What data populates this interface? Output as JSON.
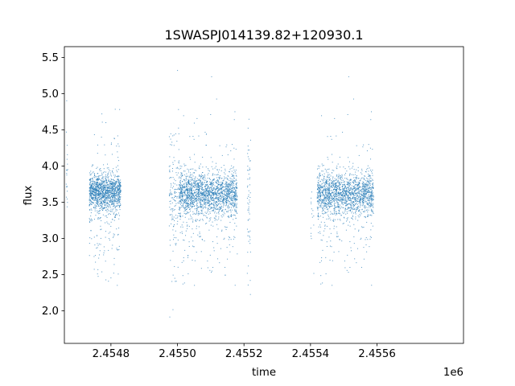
{
  "chart_data": {
    "type": "scatter",
    "title": "1SWASPJ014139.82+120930.1",
    "xlabel": "time",
    "ylabel": "flux",
    "x_offset_label": "1e6",
    "xlim": [
      2454660,
      2455860
    ],
    "ylim": [
      1.55,
      5.65
    ],
    "x_ticks": [
      2454800,
      2455000,
      2455200,
      2455400,
      2455600
    ],
    "x_tick_labels": [
      "2.4548",
      "2.4550",
      "2.4552",
      "2.4554",
      "2.4556"
    ],
    "y_ticks": [
      2.0,
      2.5,
      3.0,
      3.5,
      4.0,
      4.5,
      5.0,
      5.5
    ],
    "y_tick_labels": [
      "2.0",
      "2.5",
      "3.0",
      "3.5",
      "4.0",
      "4.5",
      "5.0",
      "5.5"
    ],
    "grid": false,
    "marker_color": "#1f77b4",
    "series": [
      {
        "observing_seasons": [
          {
            "t_start": 2454665,
            "t_end": 2454670,
            "median_flux": 3.8,
            "spread": 0.35,
            "points": 20
          },
          {
            "t_start": 2454735,
            "t_end": 2454830,
            "median_flux": 3.65,
            "spread": 0.12,
            "points": 1400
          },
          {
            "t_start": 2454975,
            "t_end": 2455005,
            "median_flux": 3.6,
            "spread": 0.45,
            "points": 150
          },
          {
            "t_start": 2455005,
            "t_end": 2455180,
            "median_flux": 3.62,
            "spread": 0.14,
            "points": 2000
          },
          {
            "t_start": 2455210,
            "t_end": 2455220,
            "median_flux": 3.5,
            "spread": 0.5,
            "points": 60
          },
          {
            "t_start": 2455400,
            "t_end": 2455410,
            "median_flux": 3.3,
            "spread": 0.2,
            "points": 15
          },
          {
            "t_start": 2455420,
            "t_end": 2455590,
            "median_flux": 3.62,
            "spread": 0.14,
            "points": 1800
          }
        ]
      }
    ]
  }
}
